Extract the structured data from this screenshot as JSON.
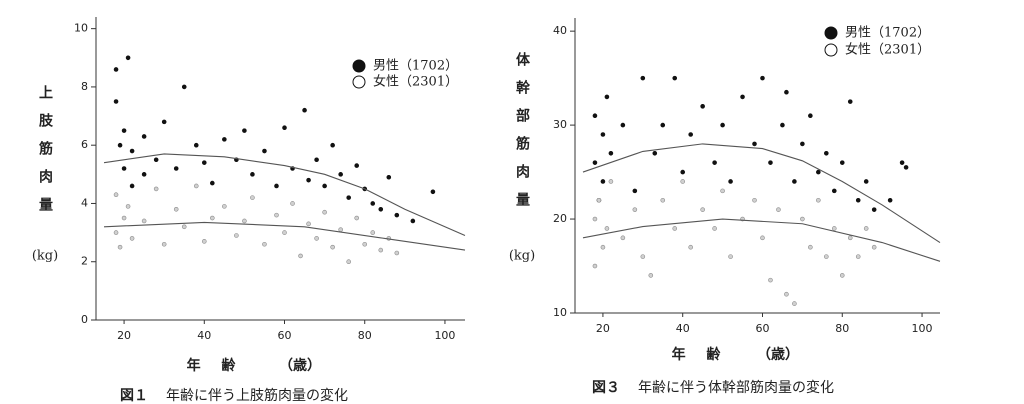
{
  "chart_data": [
    {
      "type": "scatter",
      "ylabel": "上肢筋肉量",
      "yunit": "(kg)",
      "xlabel": "年 齢",
      "xunit": "（歳）",
      "caption_number": "図１",
      "caption": "年齢に伴う上肢筋肉量の変化",
      "xlim": [
        13,
        105
      ],
      "xticks": [
        20,
        40,
        60,
        80,
        100
      ],
      "ylim": [
        0,
        10.4
      ],
      "yticks": [
        0,
        2,
        4,
        6,
        8,
        10
      ],
      "series": [
        {
          "name": "男性（1702）",
          "color": "#111111",
          "marker": "filled",
          "x": [
            18,
            18,
            19,
            20,
            20,
            21,
            22,
            22,
            25,
            25,
            28,
            30,
            33,
            35,
            38,
            40,
            42,
            45,
            48,
            50,
            52,
            55,
            58,
            60,
            62,
            65,
            66,
            68,
            70,
            72,
            74,
            76,
            78,
            80,
            82,
            84,
            86,
            88,
            92,
            97
          ],
          "values": [
            8.6,
            7.5,
            6.0,
            5.2,
            6.5,
            9.0,
            4.6,
            5.8,
            6.3,
            5.0,
            5.5,
            6.8,
            5.2,
            8.0,
            6.0,
            5.4,
            4.7,
            6.2,
            5.5,
            6.5,
            5.0,
            5.8,
            4.6,
            6.6,
            5.2,
            7.2,
            4.8,
            5.5,
            4.6,
            6.0,
            5.0,
            4.2,
            5.3,
            4.5,
            4.0,
            3.8,
            4.9,
            3.6,
            3.4,
            4.4
          ],
          "fit": {
            "x": [
              15,
              30,
              45,
              60,
              70,
              80,
              90,
              105
            ],
            "values": [
              5.4,
              5.7,
              5.6,
              5.3,
              5.0,
              4.5,
              3.8,
              2.9
            ]
          }
        },
        {
          "name": "女性（2301）",
          "color": "#8a8a8a",
          "marker": "open",
          "x": [
            18,
            18,
            19,
            20,
            21,
            22,
            25,
            28,
            30,
            33,
            35,
            38,
            40,
            42,
            45,
            48,
            50,
            52,
            55,
            58,
            60,
            62,
            64,
            66,
            68,
            70,
            72,
            74,
            76,
            78,
            80,
            82,
            84,
            86,
            88
          ],
          "values": [
            3.0,
            4.3,
            2.5,
            3.5,
            3.9,
            2.8,
            3.4,
            4.5,
            2.6,
            3.8,
            3.2,
            4.6,
            2.7,
            3.5,
            3.9,
            2.9,
            3.4,
            4.2,
            2.6,
            3.6,
            3.0,
            4.0,
            2.2,
            3.3,
            2.8,
            3.7,
            2.5,
            3.1,
            2.0,
            3.5,
            2.6,
            3.0,
            2.4,
            2.8,
            2.3
          ],
          "fit": {
            "x": [
              15,
              40,
              65,
              85,
              105
            ],
            "values": [
              3.2,
              3.35,
              3.2,
              2.8,
              2.4
            ]
          }
        }
      ]
    },
    {
      "type": "scatter",
      "ylabel": "体幹部筋肉量",
      "yunit": "(kg)",
      "xlabel": "年 齢",
      "xunit": "（歳）",
      "caption_number": "図３",
      "caption": "年齢に伴う体幹部筋肉量の変化",
      "xlim": [
        13,
        104.5
      ],
      "xticks": [
        20,
        40,
        60,
        80,
        100
      ],
      "ylim": [
        10,
        41.4
      ],
      "yticks": [
        10,
        20,
        30,
        40
      ],
      "series": [
        {
          "name": "男性（1702）",
          "color": "#111111",
          "marker": "filled",
          "x": [
            18,
            18,
            19,
            20,
            20,
            21,
            22,
            25,
            28,
            30,
            33,
            35,
            38,
            40,
            42,
            45,
            48,
            50,
            52,
            55,
            58,
            60,
            62,
            65,
            66,
            68,
            70,
            72,
            74,
            76,
            78,
            80,
            82,
            84,
            86,
            88,
            92,
            95,
            96
          ],
          "values": [
            26,
            31,
            22,
            29,
            24,
            33,
            27,
            30,
            23,
            35,
            27,
            30,
            35,
            25,
            29,
            32,
            26,
            30,
            24,
            33,
            28,
            35,
            26,
            30,
            33.5,
            24,
            28,
            31,
            25,
            27,
            23,
            26,
            32.5,
            22,
            24,
            21,
            22,
            26,
            25.5
          ],
          "fit": {
            "x": [
              15,
              30,
              45,
              60,
              70,
              80,
              90,
              104.5
            ],
            "values": [
              25,
              27.2,
              28,
              27.5,
              26.2,
              24,
              21.5,
              17.5
            ]
          }
        },
        {
          "name": "女性（2301）",
          "color": "#8a8a8a",
          "marker": "open",
          "x": [
            18,
            18,
            19,
            20,
            21,
            22,
            25,
            28,
            30,
            32,
            35,
            38,
            40,
            42,
            45,
            48,
            50,
            52,
            55,
            58,
            60,
            62,
            64,
            66,
            68,
            70,
            72,
            74,
            76,
            78,
            80,
            82,
            84,
            86,
            88
          ],
          "values": [
            15,
            20,
            22,
            17,
            19,
            24,
            18,
            21,
            16,
            14,
            22,
            19,
            24,
            17,
            21,
            19,
            23,
            16,
            20,
            22,
            18,
            13.5,
            21,
            12,
            11,
            20,
            17,
            22,
            16,
            19,
            14,
            18,
            16,
            19,
            17
          ],
          "fit": {
            "x": [
              15,
              30,
              50,
              70,
              90,
              104.5
            ],
            "values": [
              18,
              19.2,
              20,
              19.5,
              17.5,
              15.5
            ]
          }
        }
      ]
    }
  ]
}
